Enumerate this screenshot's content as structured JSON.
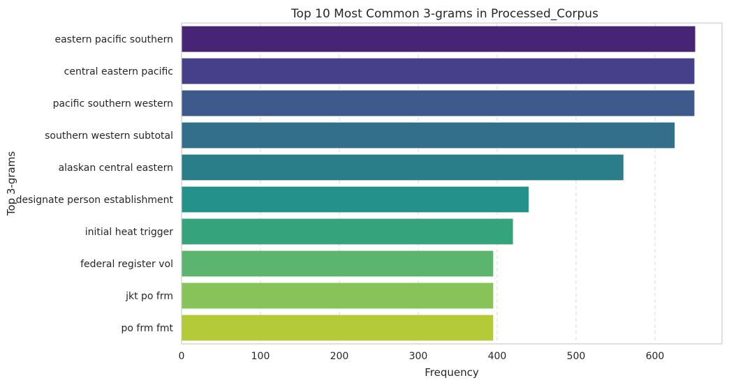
{
  "chart_data": {
    "type": "bar",
    "orientation": "horizontal",
    "title": "Top 10 Most Common 3-grams in Processed_Corpus",
    "xlabel": "Frequency",
    "ylabel": "Top 3-grams",
    "xlim": [
      0,
      685
    ],
    "xticks": [
      0,
      100,
      200,
      300,
      400,
      500,
      600
    ],
    "grid": "vertical dashed",
    "categories": [
      "eastern pacific southern",
      "central eastern pacific",
      "pacific southern western",
      "southern western subtotal",
      "alaskan central eastern",
      "designate person establishment",
      "initial heat trigger",
      "federal register vol",
      "jkt po frm",
      "po frm fmt"
    ],
    "values": [
      651,
      650,
      650,
      625,
      560,
      440,
      420,
      395,
      395,
      395
    ],
    "colors": [
      "#482475",
      "#463f89",
      "#3e5a8d",
      "#336f8a",
      "#297e8a",
      "#24918a",
      "#35a47c",
      "#5cb56e",
      "#88c35a",
      "#b4ca38"
    ]
  }
}
